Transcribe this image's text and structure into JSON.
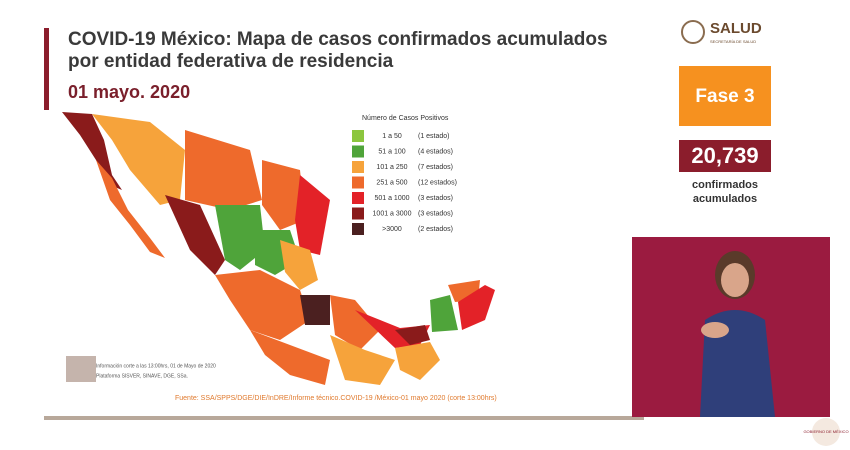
{
  "header": {
    "title_lines": [
      "COVID-19 México: Mapa de casos confirmados acumulados",
      "por entidad federativa de residencia"
    ],
    "date": "01 mayo. 2020"
  },
  "legend": {
    "title": "Número de Casos Positivos",
    "items": [
      {
        "range": "1 a 50",
        "count": "(1 estado)",
        "color": "#8cc63e"
      },
      {
        "range": "51 a 100",
        "count": "(4 estados)",
        "color": "#4fa43a"
      },
      {
        "range": "101 a 250",
        "count": "(7 estados)",
        "color": "#f6a33b"
      },
      {
        "range": "251 a 500",
        "count": "(12 estados)",
        "color": "#ee6a2c"
      },
      {
        "range": "501 a 1000",
        "count": "(3 estados)",
        "color": "#e32228"
      },
      {
        "range": "1001 a 3000",
        "count": "(3 estados)",
        "color": "#8a1b1b"
      },
      {
        "range": ">3000",
        "count": "(2 estados)",
        "color": "#4b2020"
      }
    ]
  },
  "notes": [
    "Información corte a las 13:00hrs, 01 de Mayo de 2020",
    "Plataforma SISVER, SINAVE, DGE, SSa."
  ],
  "source": "Fuente: SSA/SPPS/DGE/DIE/InDRE/Informe técnico.COVID-19 /México-01 mayo 2020 (corte 13:00hrs)",
  "sidebar": {
    "logo": "SALUD",
    "logo_sub": "SECRETARÍA DE SALUD",
    "phase": "Fase 3",
    "total": "20,739",
    "total_label": [
      "confirmados",
      "acumulados"
    ],
    "footer_logo": "GOBIERNO DE MÉXICO"
  }
}
